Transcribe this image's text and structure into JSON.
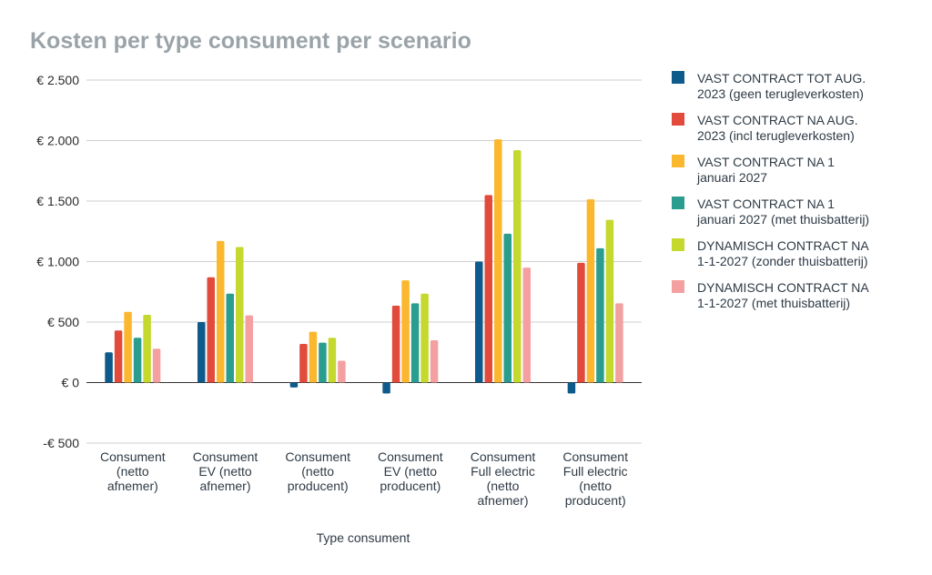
{
  "chart_data": {
    "type": "bar",
    "title": "Kosten per type consument per scenario",
    "xlabel": "Type consument",
    "ylabel": "",
    "ylim": [
      -500,
      2500
    ],
    "yticks": [
      2500,
      2000,
      1500,
      1000,
      500,
      0,
      -500
    ],
    "ytick_labels": [
      "€ 2.500",
      "€ 2.000",
      "€ 1.500",
      "€ 1.000",
      "€ 500",
      "€ 0",
      "-€ 500"
    ],
    "grid": true,
    "legend_position": "right",
    "categories": [
      "Consument (netto afnemer)",
      "Consument EV (netto afnemer)",
      "Consument (netto producent)",
      "Consument EV (netto producent)",
      "Consument Full electric (netto afnemer)",
      "Consument Full electric (netto producent)"
    ],
    "category_lines": [
      [
        "Consument",
        "(netto",
        "afnemer)"
      ],
      [
        "Consument",
        "EV (netto",
        "afnemer)"
      ],
      [
        "Consument",
        "(netto",
        "producent)"
      ],
      [
        "Consument",
        "EV (netto",
        "producent)"
      ],
      [
        "Consument",
        "Full electric",
        "(netto",
        "afnemer)"
      ],
      [
        "Consument",
        "Full electric",
        "(netto",
        "producent)"
      ]
    ],
    "series": [
      {
        "name": "VAST CONTRACT TOT AUG. 2023 (geen terugleverkosten)",
        "legend_lines": [
          "VAST CONTRACT TOT AUG.",
          "2023 (geen terugleverkosten)"
        ],
        "color": "#0e5a8a",
        "values": [
          250,
          500,
          -40,
          -90,
          1000,
          -90
        ]
      },
      {
        "name": "VAST CONTRACT NA AUG. 2023 (incl terugleverkosten)",
        "legend_lines": [
          "VAST CONTRACT NA AUG.",
          "2023 (incl terugleverkosten)"
        ],
        "color": "#e24a3b",
        "values": [
          430,
          870,
          320,
          635,
          1550,
          990
        ]
      },
      {
        "name": "VAST CONTRACT NA 1 januari 2027",
        "legend_lines": [
          "VAST CONTRACT NA 1",
          "januari 2027"
        ],
        "color": "#fbb72e",
        "values": [
          585,
          1170,
          420,
          845,
          2010,
          1515
        ]
      },
      {
        "name": "VAST CONTRACT NA 1 januari 2027 (met thuisbatterij)",
        "legend_lines": [
          "VAST CONTRACT NA 1",
          "januari 2027 (met thuisbatterij)"
        ],
        "color": "#2a9d8f",
        "values": [
          370,
          735,
          330,
          655,
          1230,
          1110
        ]
      },
      {
        "name": "DYNAMISCH CONTRACT NA 1-1-2027 (zonder thuisbatterij)",
        "legend_lines": [
          "DYNAMISCH CONTRACT NA",
          "1-1-2027 (zonder thuisbatterij)"
        ],
        "color": "#c4d82e",
        "values": [
          560,
          1120,
          370,
          735,
          1920,
          1345
        ]
      },
      {
        "name": "DYNAMISCH CONTRACT NA 1-1-2027 (met thuisbatterij)",
        "legend_lines": [
          "DYNAMISCH CONTRACT NA",
          "1-1-2027 (met thuisbatterij)"
        ],
        "color": "#f4a0a0",
        "values": [
          280,
          555,
          180,
          350,
          950,
          655
        ]
      }
    ]
  }
}
